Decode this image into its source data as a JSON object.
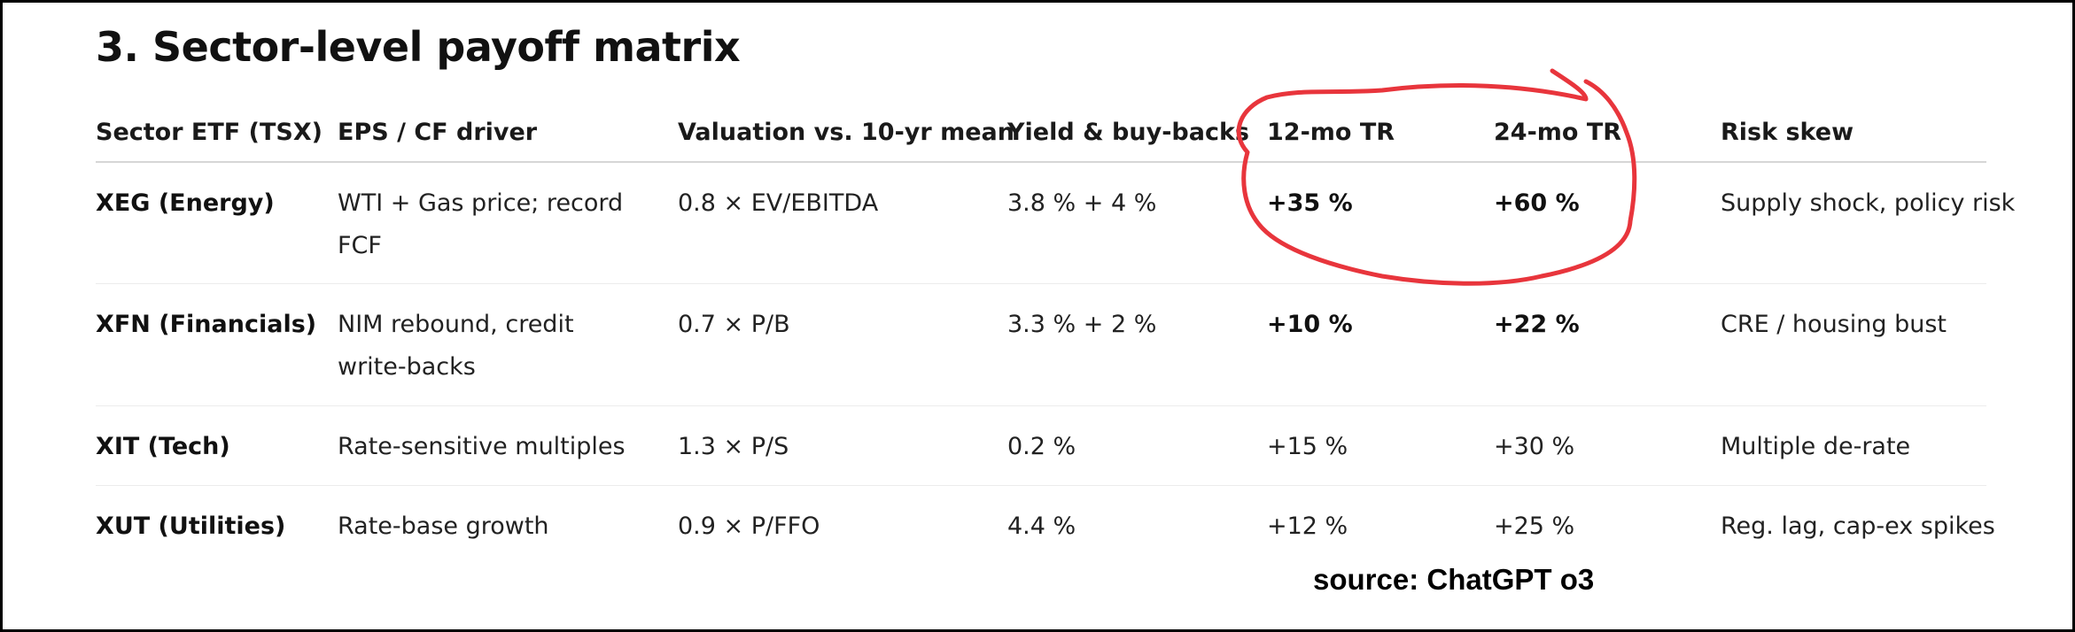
{
  "title": "3. Sector-level payoff matrix",
  "table": {
    "headers": [
      "Sector ETF (TSX)",
      "EPS / CF driver",
      "Valuation vs. 10-yr mean",
      "Yield & buy-backs",
      "12-mo TR",
      "24-mo TR",
      "Risk skew"
    ],
    "rows": [
      [
        "XEG (Energy)",
        "WTI + Gas price; record FCF",
        "0.8 × EV/EBITDA",
        "3.8 % + 4 %",
        "+35 %",
        "+60 %",
        "Supply shock, policy risk"
      ],
      [
        "XFN (Financials)",
        "NIM rebound, credit write-backs",
        "0.7 × P/B",
        "3.3 % + 2 %",
        "+10 %",
        "+22 %",
        "CRE / housing bust"
      ],
      [
        "XIT (Tech)",
        "Rate-sensitive multiples",
        "1.3 × P/S",
        "0.2 %",
        "+15 %",
        "+30 %",
        "Multiple de-rate"
      ],
      [
        "XUT (Utilities)",
        "Rate-base growth",
        "0.9 × P/FFO",
        "4.4 %",
        "+12 %",
        "+25 %",
        "Reg. lag, cap-ex spikes"
      ]
    ]
  },
  "source": "source: ChatGPT o3",
  "colors": {
    "annotation": "#e8353c",
    "border": "#000000"
  }
}
